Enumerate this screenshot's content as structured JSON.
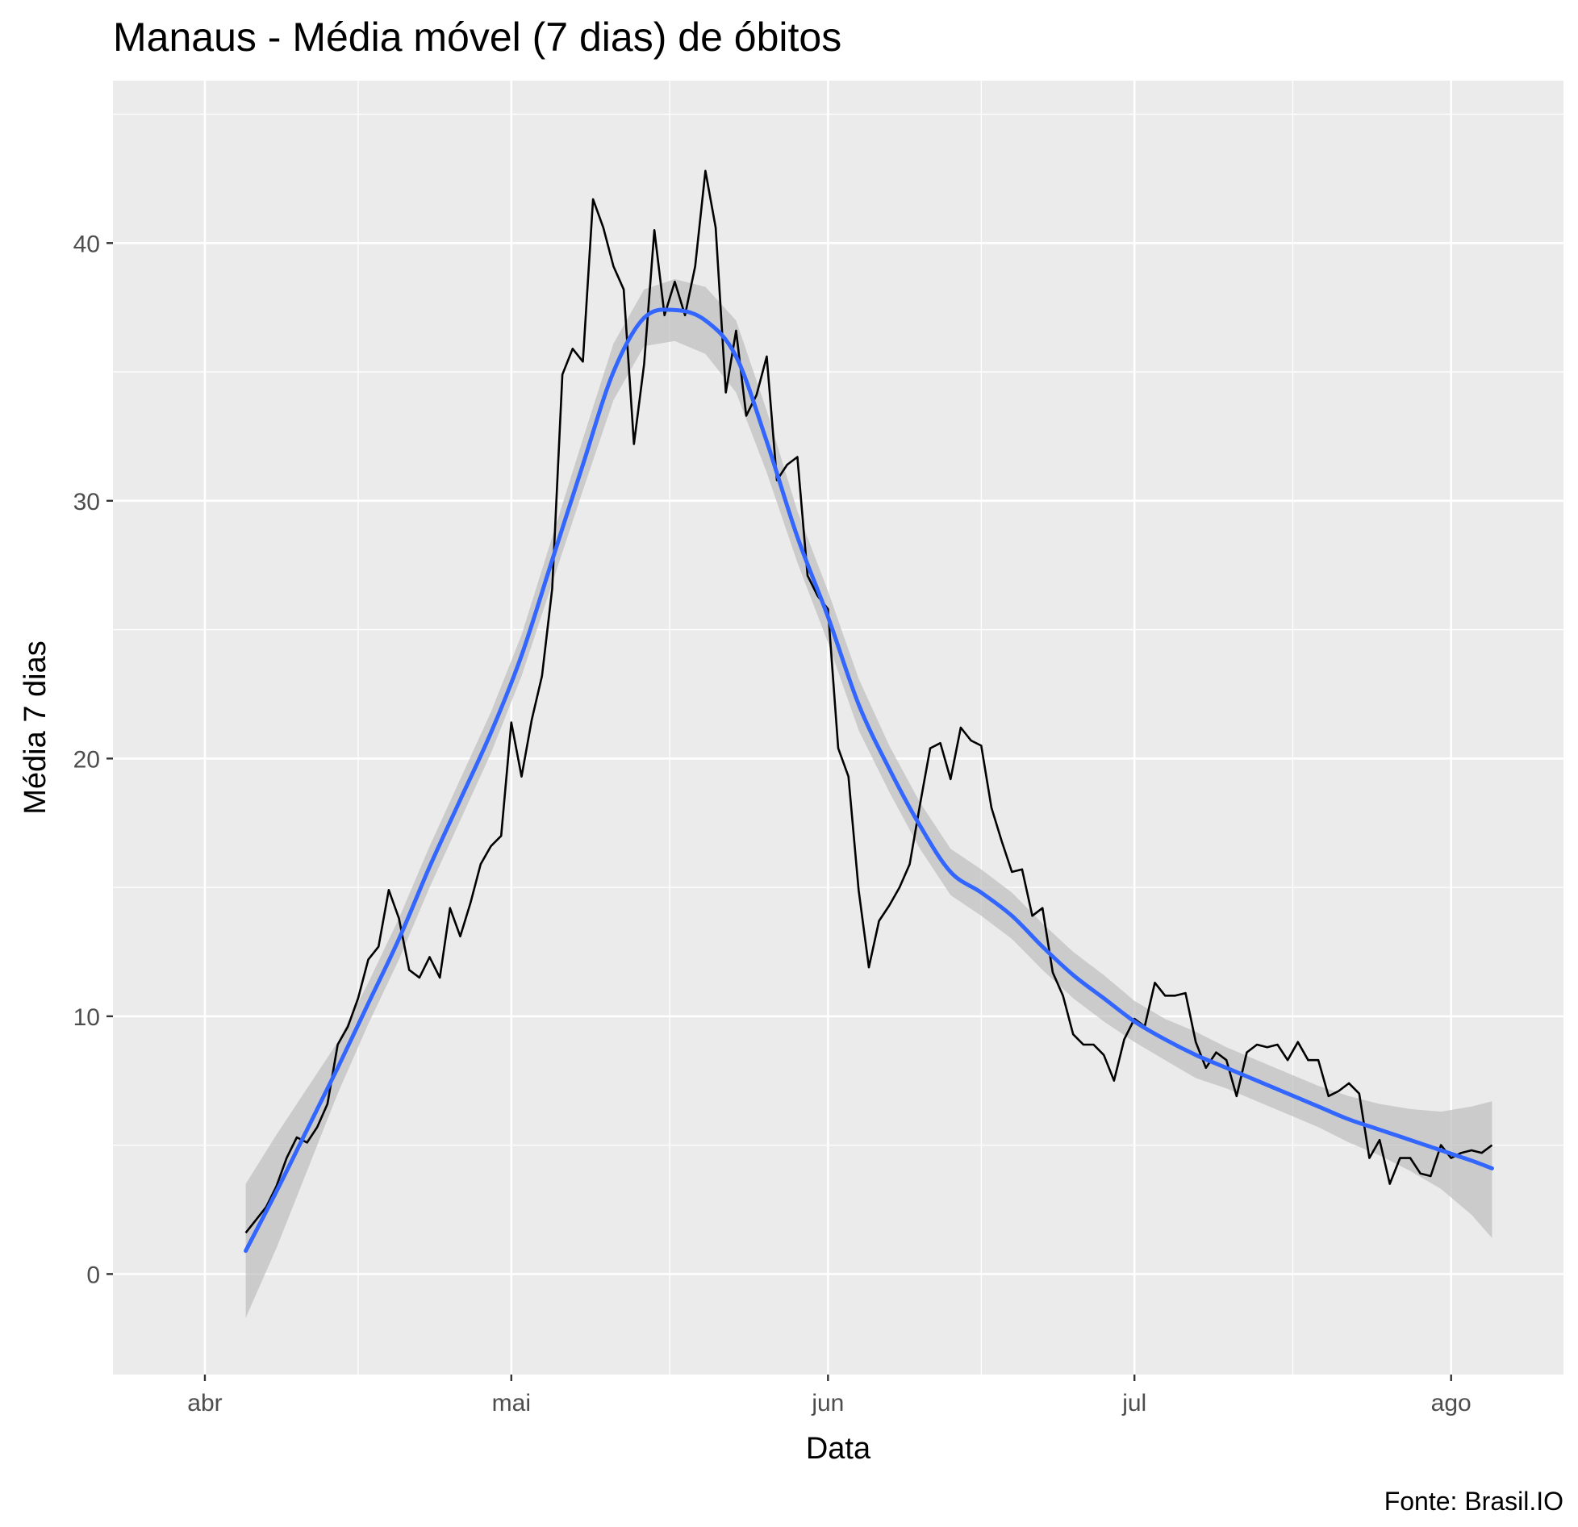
{
  "chart_data": {
    "type": "line",
    "title": "Manaus - Média móvel (7 dias) de óbitos",
    "xlabel": "Data",
    "ylabel": "Média 7 dias",
    "caption": "Fonte: Brasil.IO",
    "xlim": [
      "2020-03-23",
      "2020-08-12"
    ],
    "ylim": [
      -3.9,
      46.3
    ],
    "x_ticks": [
      {
        "date": "2020-04-01",
        "label": "abr"
      },
      {
        "date": "2020-05-01",
        "label": "mai"
      },
      {
        "date": "2020-06-01",
        "label": "jun"
      },
      {
        "date": "2020-07-01",
        "label": "jul"
      },
      {
        "date": "2020-08-01",
        "label": "ago"
      }
    ],
    "y_ticks": [
      0,
      10,
      20,
      30,
      40
    ],
    "grid": true,
    "colors": {
      "panel": "#ebebeb",
      "grid": "#ffffff",
      "line": "#000000",
      "smooth": "#3366ff",
      "ribbon": "#bdbdbd"
    },
    "series": [
      {
        "role": "observed",
        "points": [
          [
            "2020-04-05",
            1.6
          ],
          [
            "2020-04-06",
            2.1
          ],
          [
            "2020-04-07",
            2.6
          ],
          [
            "2020-04-08",
            3.4
          ],
          [
            "2020-04-09",
            4.5
          ],
          [
            "2020-04-10",
            5.3
          ],
          [
            "2020-04-11",
            5.1
          ],
          [
            "2020-04-12",
            5.7
          ],
          [
            "2020-04-13",
            6.6
          ],
          [
            "2020-04-14",
            8.9
          ],
          [
            "2020-04-15",
            9.6
          ],
          [
            "2020-04-16",
            10.7
          ],
          [
            "2020-04-17",
            12.2
          ],
          [
            "2020-04-18",
            12.7
          ],
          [
            "2020-04-19",
            14.9
          ],
          [
            "2020-04-20",
            13.8
          ],
          [
            "2020-04-21",
            11.8
          ],
          [
            "2020-04-22",
            11.5
          ],
          [
            "2020-04-23",
            12.3
          ],
          [
            "2020-04-24",
            11.5
          ],
          [
            "2020-04-25",
            14.2
          ],
          [
            "2020-04-26",
            13.1
          ],
          [
            "2020-04-27",
            14.4
          ],
          [
            "2020-04-28",
            15.9
          ],
          [
            "2020-04-29",
            16.6
          ],
          [
            "2020-04-30",
            17.0
          ],
          [
            "2020-05-01",
            21.4
          ],
          [
            "2020-05-02",
            19.3
          ],
          [
            "2020-05-03",
            21.5
          ],
          [
            "2020-05-04",
            23.2
          ],
          [
            "2020-05-05",
            26.6
          ],
          [
            "2020-05-06",
            34.9
          ],
          [
            "2020-05-07",
            35.9
          ],
          [
            "2020-05-08",
            35.4
          ],
          [
            "2020-05-09",
            41.7
          ],
          [
            "2020-05-10",
            40.6
          ],
          [
            "2020-05-11",
            39.1
          ],
          [
            "2020-05-12",
            38.2
          ],
          [
            "2020-05-13",
            32.2
          ],
          [
            "2020-05-14",
            35.3
          ],
          [
            "2020-05-15",
            40.5
          ],
          [
            "2020-05-16",
            37.2
          ],
          [
            "2020-05-17",
            38.5
          ],
          [
            "2020-05-18",
            37.2
          ],
          [
            "2020-05-19",
            39.1
          ],
          [
            "2020-05-20",
            42.8
          ],
          [
            "2020-05-21",
            40.6
          ],
          [
            "2020-05-22",
            34.2
          ],
          [
            "2020-05-23",
            36.6
          ],
          [
            "2020-05-24",
            33.3
          ],
          [
            "2020-05-25",
            34.1
          ],
          [
            "2020-05-26",
            35.6
          ],
          [
            "2020-05-27",
            30.8
          ],
          [
            "2020-05-28",
            31.4
          ],
          [
            "2020-05-29",
            31.7
          ],
          [
            "2020-05-30",
            27.1
          ],
          [
            "2020-05-31",
            26.3
          ],
          [
            "2020-06-01",
            25.8
          ],
          [
            "2020-06-02",
            20.4
          ],
          [
            "2020-06-03",
            19.3
          ],
          [
            "2020-06-04",
            14.9
          ],
          [
            "2020-06-05",
            11.9
          ],
          [
            "2020-06-06",
            13.7
          ],
          [
            "2020-06-07",
            14.3
          ],
          [
            "2020-06-08",
            15.0
          ],
          [
            "2020-06-09",
            15.9
          ],
          [
            "2020-06-10",
            18.2
          ],
          [
            "2020-06-11",
            20.4
          ],
          [
            "2020-06-12",
            20.6
          ],
          [
            "2020-06-13",
            19.2
          ],
          [
            "2020-06-14",
            21.2
          ],
          [
            "2020-06-15",
            20.7
          ],
          [
            "2020-06-16",
            20.5
          ],
          [
            "2020-06-17",
            18.1
          ],
          [
            "2020-06-18",
            16.8
          ],
          [
            "2020-06-19",
            15.6
          ],
          [
            "2020-06-20",
            15.7
          ],
          [
            "2020-06-21",
            13.9
          ],
          [
            "2020-06-22",
            14.2
          ],
          [
            "2020-06-23",
            11.7
          ],
          [
            "2020-06-24",
            10.8
          ],
          [
            "2020-06-25",
            9.3
          ],
          [
            "2020-06-26",
            8.9
          ],
          [
            "2020-06-27",
            8.9
          ],
          [
            "2020-06-28",
            8.5
          ],
          [
            "2020-06-29",
            7.5
          ],
          [
            "2020-06-30",
            9.1
          ],
          [
            "2020-07-01",
            9.9
          ],
          [
            "2020-07-02",
            9.6
          ],
          [
            "2020-07-03",
            11.3
          ],
          [
            "2020-07-04",
            10.8
          ],
          [
            "2020-07-05",
            10.8
          ],
          [
            "2020-07-06",
            10.9
          ],
          [
            "2020-07-07",
            9.0
          ],
          [
            "2020-07-08",
            8.0
          ],
          [
            "2020-07-09",
            8.6
          ],
          [
            "2020-07-10",
            8.3
          ],
          [
            "2020-07-11",
            6.9
          ],
          [
            "2020-07-12",
            8.6
          ],
          [
            "2020-07-13",
            8.9
          ],
          [
            "2020-07-14",
            8.8
          ],
          [
            "2020-07-15",
            8.9
          ],
          [
            "2020-07-16",
            8.3
          ],
          [
            "2020-07-17",
            9.0
          ],
          [
            "2020-07-18",
            8.3
          ],
          [
            "2020-07-19",
            8.3
          ],
          [
            "2020-07-20",
            6.9
          ],
          [
            "2020-07-21",
            7.1
          ],
          [
            "2020-07-22",
            7.4
          ],
          [
            "2020-07-23",
            7.0
          ],
          [
            "2020-07-24",
            4.5
          ],
          [
            "2020-07-25",
            5.2
          ],
          [
            "2020-07-26",
            3.5
          ],
          [
            "2020-07-27",
            4.5
          ],
          [
            "2020-07-28",
            4.5
          ],
          [
            "2020-07-29",
            3.9
          ],
          [
            "2020-07-30",
            3.8
          ],
          [
            "2020-07-31",
            5.0
          ],
          [
            "2020-08-01",
            4.5
          ],
          [
            "2020-08-02",
            4.7
          ],
          [
            "2020-08-03",
            4.8
          ],
          [
            "2020-08-04",
            4.7
          ],
          [
            "2020-08-05",
            5.0
          ]
        ]
      },
      {
        "role": "smooth",
        "points": [
          [
            "2020-04-05",
            0.9
          ],
          [
            "2020-04-08",
            3.2
          ],
          [
            "2020-04-11",
            5.6
          ],
          [
            "2020-04-14",
            8.0
          ],
          [
            "2020-04-17",
            10.5
          ],
          [
            "2020-04-20",
            13.0
          ],
          [
            "2020-04-23",
            15.8
          ],
          [
            "2020-04-26",
            18.4
          ],
          [
            "2020-04-29",
            21.0
          ],
          [
            "2020-05-02",
            24.0
          ],
          [
            "2020-05-05",
            27.7
          ],
          [
            "2020-05-08",
            31.4
          ],
          [
            "2020-05-11",
            35.0
          ],
          [
            "2020-05-14",
            37.1
          ],
          [
            "2020-05-17",
            37.4
          ],
          [
            "2020-05-20",
            37.0
          ],
          [
            "2020-05-23",
            35.6
          ],
          [
            "2020-05-26",
            32.3
          ],
          [
            "2020-05-29",
            28.6
          ],
          [
            "2020-06-01",
            25.5
          ],
          [
            "2020-06-04",
            22.1
          ],
          [
            "2020-06-07",
            19.6
          ],
          [
            "2020-06-10",
            17.4
          ],
          [
            "2020-06-13",
            15.6
          ],
          [
            "2020-06-16",
            14.8
          ],
          [
            "2020-06-19",
            13.9
          ],
          [
            "2020-06-22",
            12.7
          ],
          [
            "2020-06-25",
            11.6
          ],
          [
            "2020-06-28",
            10.7
          ],
          [
            "2020-07-01",
            9.8
          ],
          [
            "2020-07-04",
            9.1
          ],
          [
            "2020-07-07",
            8.5
          ],
          [
            "2020-07-10",
            8.0
          ],
          [
            "2020-07-13",
            7.5
          ],
          [
            "2020-07-16",
            7.0
          ],
          [
            "2020-07-19",
            6.5
          ],
          [
            "2020-07-22",
            6.0
          ],
          [
            "2020-07-25",
            5.6
          ],
          [
            "2020-07-28",
            5.2
          ],
          [
            "2020-07-31",
            4.8
          ],
          [
            "2020-08-03",
            4.4
          ],
          [
            "2020-08-05",
            4.1
          ]
        ],
        "band_lower": [
          [
            "2020-04-05",
            -1.7
          ],
          [
            "2020-04-08",
            1.0
          ],
          [
            "2020-04-11",
            4.0
          ],
          [
            "2020-04-14",
            7.0
          ],
          [
            "2020-04-17",
            9.7
          ],
          [
            "2020-04-20",
            12.2
          ],
          [
            "2020-04-23",
            15.0
          ],
          [
            "2020-04-26",
            17.6
          ],
          [
            "2020-04-29",
            20.2
          ],
          [
            "2020-05-02",
            23.2
          ],
          [
            "2020-05-05",
            26.8
          ],
          [
            "2020-05-08",
            30.4
          ],
          [
            "2020-05-11",
            33.9
          ],
          [
            "2020-05-14",
            36.0
          ],
          [
            "2020-05-17",
            36.2
          ],
          [
            "2020-05-20",
            35.7
          ],
          [
            "2020-05-23",
            34.2
          ],
          [
            "2020-05-26",
            31.1
          ],
          [
            "2020-05-29",
            27.6
          ],
          [
            "2020-06-01",
            24.5
          ],
          [
            "2020-06-04",
            21.1
          ],
          [
            "2020-06-07",
            18.7
          ],
          [
            "2020-06-10",
            16.5
          ],
          [
            "2020-06-13",
            14.7
          ],
          [
            "2020-06-16",
            13.9
          ],
          [
            "2020-06-19",
            13.0
          ],
          [
            "2020-06-22",
            11.8
          ],
          [
            "2020-06-25",
            10.7
          ],
          [
            "2020-06-28",
            9.8
          ],
          [
            "2020-07-01",
            9.0
          ],
          [
            "2020-07-04",
            8.3
          ],
          [
            "2020-07-07",
            7.6
          ],
          [
            "2020-07-10",
            7.2
          ],
          [
            "2020-07-13",
            6.7
          ],
          [
            "2020-07-16",
            6.2
          ],
          [
            "2020-07-19",
            5.7
          ],
          [
            "2020-07-22",
            5.1
          ],
          [
            "2020-07-25",
            4.6
          ],
          [
            "2020-07-28",
            4.0
          ],
          [
            "2020-07-31",
            3.3
          ],
          [
            "2020-08-03",
            2.3
          ],
          [
            "2020-08-05",
            1.4
          ]
        ],
        "band_upper": [
          [
            "2020-04-05",
            3.5
          ],
          [
            "2020-04-08",
            5.4
          ],
          [
            "2020-04-11",
            7.2
          ],
          [
            "2020-04-14",
            9.0
          ],
          [
            "2020-04-17",
            11.3
          ],
          [
            "2020-04-20",
            13.8
          ],
          [
            "2020-04-23",
            16.6
          ],
          [
            "2020-04-26",
            19.2
          ],
          [
            "2020-04-29",
            21.8
          ],
          [
            "2020-05-02",
            24.8
          ],
          [
            "2020-05-05",
            28.6
          ],
          [
            "2020-05-08",
            32.4
          ],
          [
            "2020-05-11",
            36.1
          ],
          [
            "2020-05-14",
            38.2
          ],
          [
            "2020-05-17",
            38.6
          ],
          [
            "2020-05-20",
            38.3
          ],
          [
            "2020-05-23",
            37.0
          ],
          [
            "2020-05-26",
            33.5
          ],
          [
            "2020-05-29",
            29.6
          ],
          [
            "2020-06-01",
            26.5
          ],
          [
            "2020-06-04",
            23.1
          ],
          [
            "2020-06-07",
            20.5
          ],
          [
            "2020-06-10",
            18.3
          ],
          [
            "2020-06-13",
            16.5
          ],
          [
            "2020-06-16",
            15.7
          ],
          [
            "2020-06-19",
            14.8
          ],
          [
            "2020-06-22",
            13.6
          ],
          [
            "2020-06-25",
            12.5
          ],
          [
            "2020-06-28",
            11.6
          ],
          [
            "2020-07-01",
            10.6
          ],
          [
            "2020-07-04",
            9.9
          ],
          [
            "2020-07-07",
            9.4
          ],
          [
            "2020-07-10",
            8.8
          ],
          [
            "2020-07-13",
            8.3
          ],
          [
            "2020-07-16",
            7.8
          ],
          [
            "2020-07-19",
            7.3
          ],
          [
            "2020-07-22",
            6.9
          ],
          [
            "2020-07-25",
            6.6
          ],
          [
            "2020-07-28",
            6.4
          ],
          [
            "2020-07-31",
            6.3
          ],
          [
            "2020-08-03",
            6.5
          ],
          [
            "2020-08-05",
            6.7
          ]
        ]
      }
    ]
  }
}
